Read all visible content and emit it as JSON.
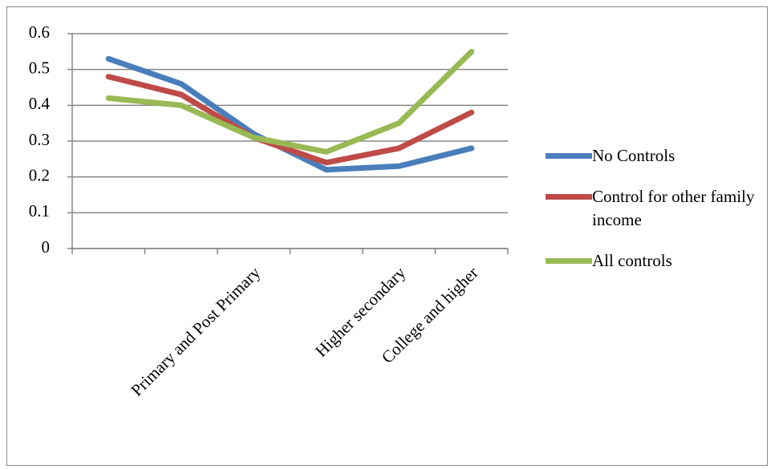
{
  "chart_data": {
    "type": "line",
    "categories": [
      null,
      null,
      "Primary and Post Primary",
      null,
      "Higher secondary",
      "College and higher"
    ],
    "series": [
      {
        "name": "No Controls",
        "color": "#4a7ebb",
        "values": [
          0.53,
          0.46,
          0.32,
          0.22,
          0.23,
          0.28
        ]
      },
      {
        "name": "Control for other family income",
        "color": "#be4b48",
        "values": [
          0.48,
          0.43,
          0.31,
          0.24,
          0.28,
          0.38
        ]
      },
      {
        "name": "All controls",
        "color": "#98b954",
        "values": [
          0.42,
          0.4,
          0.31,
          0.27,
          0.35,
          0.55
        ]
      }
    ],
    "ylim": [
      0,
      0.6
    ],
    "yticks": [
      0,
      0.1,
      0.2,
      0.3,
      0.4,
      0.5,
      0.6
    ],
    "grid": true,
    "legend": "right"
  }
}
